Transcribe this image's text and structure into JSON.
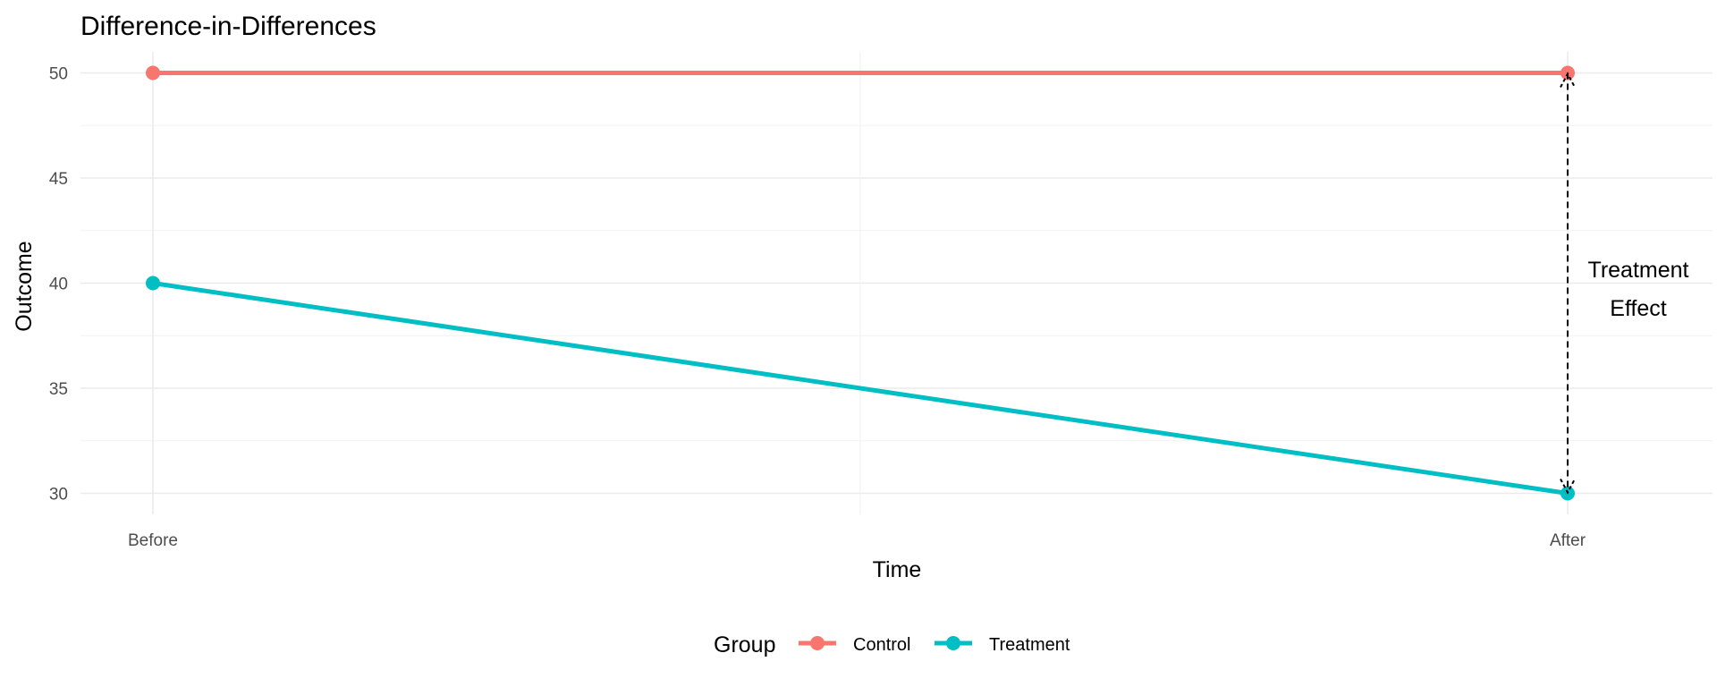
{
  "chart_data": {
    "type": "line",
    "title": "Difference-in-Differences",
    "xlabel": "Time",
    "ylabel": "Outcome",
    "categories": [
      "Before",
      "After"
    ],
    "y_ticks": [
      30,
      35,
      40,
      45,
      50
    ],
    "ylim": [
      29,
      51
    ],
    "grid": true,
    "legend": {
      "title": "Group",
      "placement": "bottom"
    },
    "series": [
      {
        "name": "Control",
        "color": "#f8766d",
        "values": [
          50,
          50
        ]
      },
      {
        "name": "Treatment",
        "color": "#00bfc4",
        "values": [
          40,
          30
        ]
      }
    ],
    "annotation": {
      "type": "arrow",
      "category": "After",
      "from": 30,
      "to": 50,
      "style": "dashed",
      "lines": [
        "Treatment",
        "Effect"
      ]
    }
  }
}
